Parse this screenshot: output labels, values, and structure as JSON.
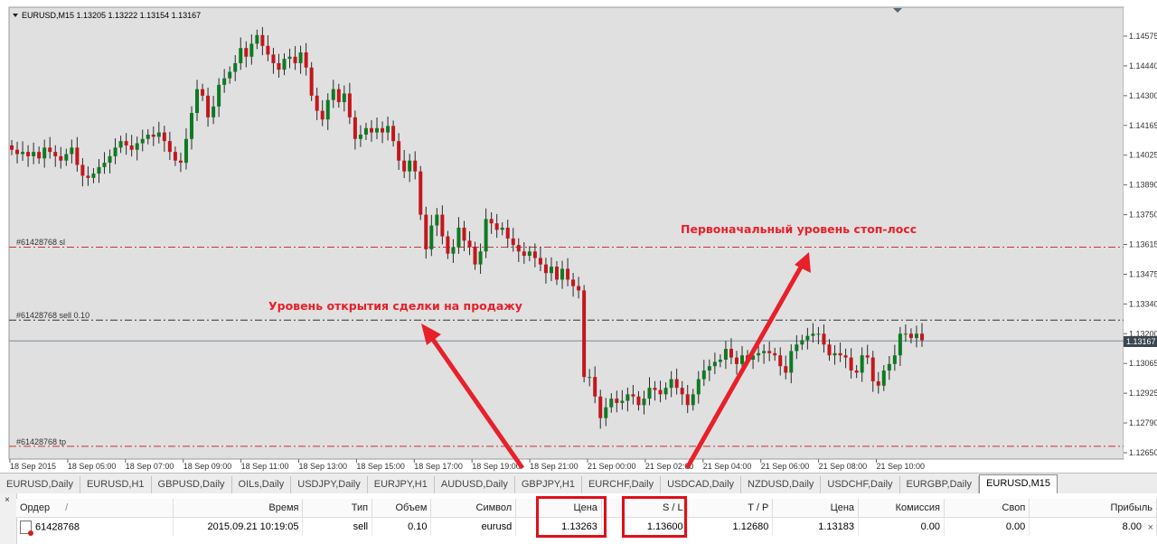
{
  "chart": {
    "header": "EURUSD,M15  1.13205 1.13222 1.13154 1.13167",
    "current_price_label": "1.13167",
    "lines": {
      "sl_label": "#61428768 sl",
      "sell_label": "#61428768 sell 0.10",
      "tp_label": "#61428768 tp"
    },
    "annotations": {
      "stop_loss": "Первоначальный уровень стоп-лосс",
      "open_sell": "Уровень открытия сделки на продажу"
    },
    "colors": {
      "bull": "#0d7a22",
      "bear": "#c4161c",
      "annotation": "#e8202a",
      "hline": "#c83232",
      "grid": "#c8c8c8",
      "background": "#e0e0e0"
    }
  },
  "chart_data": {
    "type": "candlestick",
    "symbol": "EURUSD",
    "timeframe": "M15",
    "y_ticks": [
      "1.14575",
      "1.14440",
      "1.14300",
      "1.14165",
      "1.14025",
      "1.13890",
      "1.13750",
      "1.13615",
      "1.13475",
      "1.13340",
      "1.13200",
      "1.13065",
      "1.12925",
      "1.12790",
      "1.12650"
    ],
    "x_ticks": [
      "18 Sep 2015",
      "18 Sep 05:00",
      "18 Sep 07:00",
      "18 Sep 09:00",
      "18 Sep 11:00",
      "18 Sep 13:00",
      "18 Sep 15:00",
      "18 Sep 17:00",
      "18 Sep 19:00",
      "18 Sep 21:00",
      "21 Sep 00:00",
      "21 Sep 02:00",
      "21 Sep 04:00",
      "21 Sep 06:00",
      "21 Sep 08:00",
      "21 Sep 10:00"
    ],
    "levels": {
      "stop_loss": 1.136,
      "sell_open": 1.13263,
      "take_profit": 1.1268,
      "current": 1.13167
    },
    "ylim": [
      1.1265,
      1.1465
    ],
    "closes": [
      1.1405,
      1.1403,
      1.1404,
      1.1402,
      1.1404,
      1.1401,
      1.1406,
      1.1404,
      1.1402,
      1.14,
      1.1403,
      1.1406,
      1.1398,
      1.1393,
      1.1392,
      1.1394,
      1.1397,
      1.1399,
      1.1402,
      1.1406,
      1.1409,
      1.1407,
      1.1405,
      1.1408,
      1.141,
      1.1412,
      1.1411,
      1.1413,
      1.1409,
      1.1404,
      1.14,
      1.1399,
      1.141,
      1.1422,
      1.1433,
      1.143,
      1.142,
      1.1425,
      1.1435,
      1.1438,
      1.1441,
      1.1445,
      1.1452,
      1.1448,
      1.1454,
      1.1458,
      1.1453,
      1.1449,
      1.1445,
      1.1442,
      1.1447,
      1.1448,
      1.1445,
      1.145,
      1.1443,
      1.143,
      1.1423,
      1.1419,
      1.1428,
      1.1433,
      1.1427,
      1.1431,
      1.142,
      1.141,
      1.1412,
      1.1415,
      1.1413,
      1.1415,
      1.1413,
      1.1416,
      1.1409,
      1.14,
      1.1395,
      1.14,
      1.1395,
      1.1375,
      1.1359,
      1.137,
      1.1375,
      1.1365,
      1.1357,
      1.136,
      1.1369,
      1.1363,
      1.136,
      1.1352,
      1.1358,
      1.1373,
      1.1371,
      1.1368,
      1.1369,
      1.1364,
      1.1361,
      1.1358,
      1.1356,
      1.1358,
      1.1355,
      1.1352,
      1.1348,
      1.1351,
      1.1345,
      1.135,
      1.1345,
      1.1342,
      1.134,
      1.13,
      1.13,
      1.1291,
      1.1281,
      1.1286,
      1.129,
      1.1288,
      1.1289,
      1.1292,
      1.1291,
      1.1287,
      1.129,
      1.1295,
      1.1294,
      1.1292,
      1.1295,
      1.1299,
      1.1295,
      1.1292,
      1.1287,
      1.1292,
      1.1299,
      1.1303,
      1.1305,
      1.1307,
      1.1308,
      1.1313,
      1.1309,
      1.1306,
      1.131,
      1.1308,
      1.131,
      1.1311,
      1.1312,
      1.1311,
      1.131,
      1.1305,
      1.1302,
      1.1312,
      1.1315,
      1.1317,
      1.1319,
      1.132,
      1.132,
      1.1315,
      1.131,
      1.1311,
      1.131,
      1.1309,
      1.1303,
      1.1302,
      1.131,
      1.1309,
      1.1298,
      1.1296,
      1.1303,
      1.1306,
      1.131,
      1.132,
      1.132,
      1.1318,
      1.132,
      1.1317
    ]
  },
  "tabs": [
    "EURUSD,Daily",
    "EURUSD,H1",
    "GBPUSD,Daily",
    "OILs,Daily",
    "USDJPY,Daily",
    "EURJPY,H1",
    "AUDUSD,Daily",
    "GBPJPY,H1",
    "EURCHF,Daily",
    "USDCAD,Daily",
    "NZDUSD,Daily",
    "USDCHF,Daily",
    "EURGBP,Daily",
    "EURUSD,M15"
  ],
  "active_tab": "EURUSD,M15",
  "terminal": {
    "side_label": "×",
    "headers": {
      "order": "Ордер",
      "sort": "/",
      "time": "Время",
      "type": "Тип",
      "volume": "Объем",
      "symbol": "Символ",
      "price": "Цена",
      "sl": "S / L",
      "tp": "T / P",
      "cur_price": "Цена",
      "commission": "Комиссия",
      "swap": "Своп",
      "profit": "Прибыль"
    },
    "row": {
      "order": "61428768",
      "time": "2015.09.21 10:19:05",
      "type": "sell",
      "volume": "0.10",
      "symbol": "eurusd",
      "price": "1.13263",
      "sl": "1.13600",
      "tp": "1.12680",
      "cur_price": "1.13183",
      "commission": "0.00",
      "swap": "0.00",
      "profit": "8.00"
    },
    "row_close": "×"
  }
}
